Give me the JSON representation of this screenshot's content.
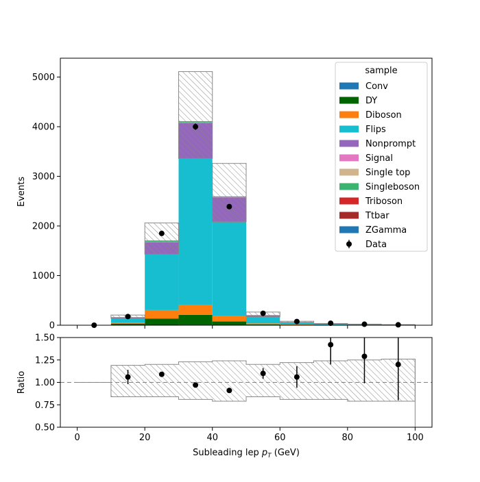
{
  "chart_data": {
    "type": "bar",
    "stacked": true,
    "bin_edges": [
      0,
      10,
      20,
      30,
      40,
      50,
      60,
      70,
      80,
      90,
      100
    ],
    "xlabel": "Subleading lep",
    "xlabel_unit": "(GeV)",
    "xlim": [
      -5,
      105
    ],
    "x_ticks": [
      0,
      20,
      40,
      60,
      80,
      100
    ],
    "main": {
      "ylabel": "Events",
      "ylim": [
        0,
        5380
      ],
      "y_ticks": [
        0,
        1000,
        2000,
        3000,
        4000,
        5000
      ],
      "series": [
        {
          "name": "Conv",
          "color": "#1f77b4",
          "values": [
            0,
            2,
            5,
            8,
            5,
            2,
            1,
            0,
            0,
            0
          ]
        },
        {
          "name": "DY",
          "color": "#006400",
          "values": [
            0,
            30,
            130,
            200,
            70,
            15,
            5,
            3,
            2,
            1
          ]
        },
        {
          "name": "Diboson",
          "color": "#ff7f0e",
          "values": [
            0,
            20,
            170,
            200,
            110,
            20,
            7,
            4,
            3,
            2
          ]
        },
        {
          "name": "Flips",
          "color": "#17becf",
          "values": [
            0,
            90,
            1130,
            2950,
            1900,
            120,
            40,
            15,
            8,
            4
          ]
        },
        {
          "name": "Nonprompt",
          "color": "#9467bd",
          "values": [
            0,
            15,
            240,
            720,
            490,
            40,
            10,
            6,
            4,
            3
          ]
        },
        {
          "name": "Signal",
          "color": "#e377c2",
          "values": [
            0,
            0,
            2,
            3,
            2,
            1,
            0,
            0,
            0,
            0
          ]
        },
        {
          "name": "Single top",
          "color": "#d2b48c",
          "values": [
            0,
            2,
            5,
            5,
            4,
            2,
            1,
            0,
            0,
            0
          ]
        },
        {
          "name": "Singleboson",
          "color": "#3cb371",
          "values": [
            0,
            2,
            15,
            15,
            5,
            2,
            1,
            0,
            0,
            0
          ]
        },
        {
          "name": "Triboson",
          "color": "#d62728",
          "values": [
            0,
            0,
            2,
            2,
            2,
            1,
            0,
            0,
            0,
            0
          ]
        },
        {
          "name": "Ttbar",
          "color": "#a52a2a",
          "values": [
            0,
            2,
            5,
            5,
            5,
            2,
            1,
            0,
            0,
            0
          ]
        },
        {
          "name": "ZGamma",
          "color": "#1f77b4",
          "values": [
            0,
            1,
            2,
            3,
            2,
            1,
            0,
            0,
            0,
            0
          ]
        }
      ],
      "uncertainty": {
        "low": [
          0,
          140,
          1430,
          3360,
          2080,
          170,
          55,
          25,
          15,
          7
        ],
        "high": [
          0,
          205,
          2060,
          5110,
          3260,
          265,
          80,
          35,
          22,
          12
        ]
      },
      "data": {
        "name": "Data",
        "x": [
          5,
          15,
          25,
          35,
          45,
          55,
          65,
          75,
          85,
          95
        ],
        "y": [
          0,
          175,
          1850,
          4000,
          2390,
          240,
          75,
          40,
          20,
          8
        ],
        "yerr": [
          0,
          13,
          43,
          63,
          49,
          15,
          9,
          6,
          4,
          3
        ]
      }
    },
    "ratio": {
      "ylabel": "Ratio",
      "ylim": [
        0.5,
        1.5
      ],
      "y_ticks": [
        "0.50",
        "0.75",
        "1.00",
        "1.25",
        "1.50"
      ],
      "reference_line": 1.0,
      "band_low": [
        1.0,
        0.84,
        0.84,
        0.81,
        0.79,
        0.84,
        0.81,
        0.81,
        0.79,
        0.79
      ],
      "band_high": [
        1.0,
        1.19,
        1.2,
        1.23,
        1.24,
        1.2,
        1.22,
        1.24,
        1.25,
        1.26
      ],
      "points": {
        "x": [
          15,
          25,
          35,
          45,
          55,
          65,
          75,
          85,
          95
        ],
        "y": [
          1.06,
          1.09,
          0.97,
          0.91,
          1.1,
          1.06,
          1.42,
          1.29,
          1.2
        ],
        "yerr": [
          0.08,
          0.02,
          0.015,
          0.02,
          0.06,
          0.12,
          0.22,
          0.3,
          0.4
        ]
      }
    },
    "legend": {
      "title": "sample",
      "placement": "top-right"
    }
  }
}
